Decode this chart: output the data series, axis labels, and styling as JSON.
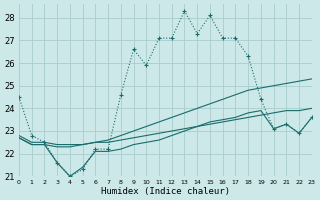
{
  "xlabel": "Humidex (Indice chaleur)",
  "bg_color": "#cce8e8",
  "grid_color": "#aacccc",
  "line_color": "#1a6b6b",
  "xlim": [
    0,
    23
  ],
  "ylim": [
    21,
    28.6
  ],
  "yticks": [
    21,
    22,
    23,
    24,
    25,
    26,
    27,
    28
  ],
  "xticks": [
    0,
    1,
    2,
    3,
    4,
    5,
    6,
    7,
    8,
    9,
    10,
    11,
    12,
    13,
    14,
    15,
    16,
    17,
    18,
    19,
    20,
    21,
    22,
    23
  ],
  "series": {
    "dotted": [
      24.5,
      22.8,
      22.5,
      21.6,
      21.0,
      21.3,
      22.2,
      22.2,
      24.6,
      26.6,
      25.9,
      27.1,
      27.1,
      28.3,
      27.3,
      28.1,
      27.1,
      27.1,
      26.3,
      24.4,
      23.1,
      23.3,
      22.9,
      23.6
    ],
    "solid1": [
      22.8,
      22.5,
      22.5,
      22.4,
      22.4,
      22.4,
      22.5,
      22.5,
      22.6,
      22.7,
      22.8,
      22.9,
      23.0,
      23.1,
      23.2,
      23.3,
      23.4,
      23.5,
      23.6,
      23.7,
      23.8,
      23.9,
      23.9,
      24.0
    ],
    "solid2": [
      22.7,
      22.4,
      22.4,
      22.3,
      22.3,
      22.4,
      22.5,
      22.6,
      22.8,
      23.0,
      23.2,
      23.4,
      23.6,
      23.8,
      24.0,
      24.2,
      24.4,
      24.6,
      24.8,
      24.9,
      25.0,
      25.1,
      25.2,
      25.3
    ],
    "solid3": [
      22.7,
      22.4,
      22.4,
      21.6,
      21.0,
      21.4,
      22.1,
      22.1,
      22.2,
      22.4,
      22.5,
      22.6,
      22.8,
      23.0,
      23.2,
      23.4,
      23.5,
      23.6,
      23.8,
      23.9,
      23.1,
      23.3,
      22.9,
      23.6
    ]
  }
}
